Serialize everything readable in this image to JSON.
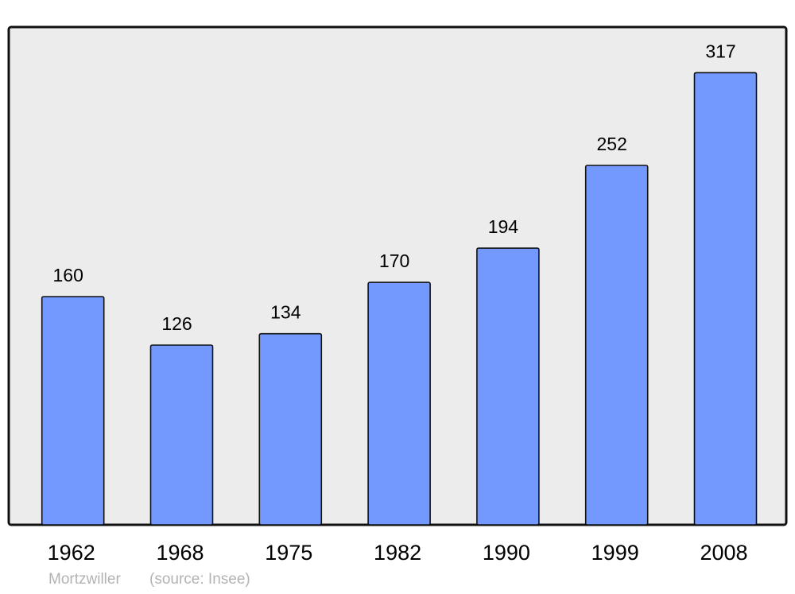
{
  "chart_data": {
    "type": "bar",
    "title": "",
    "xlabel": "",
    "ylabel": "",
    "categories": [
      "1962",
      "1968",
      "1975",
      "1982",
      "1990",
      "1999",
      "2008"
    ],
    "values": [
      160,
      126,
      134,
      170,
      194,
      252,
      317
    ],
    "data_labels": [
      "160",
      "126",
      "134",
      "170",
      "194",
      "252",
      "317"
    ],
    "ylim": [
      0,
      349
    ],
    "grid": false,
    "bar_color": "#7399ff",
    "background_color": "#ececec"
  },
  "footer": {
    "place": "Mortzwiller",
    "source": "(source: Insee)"
  }
}
